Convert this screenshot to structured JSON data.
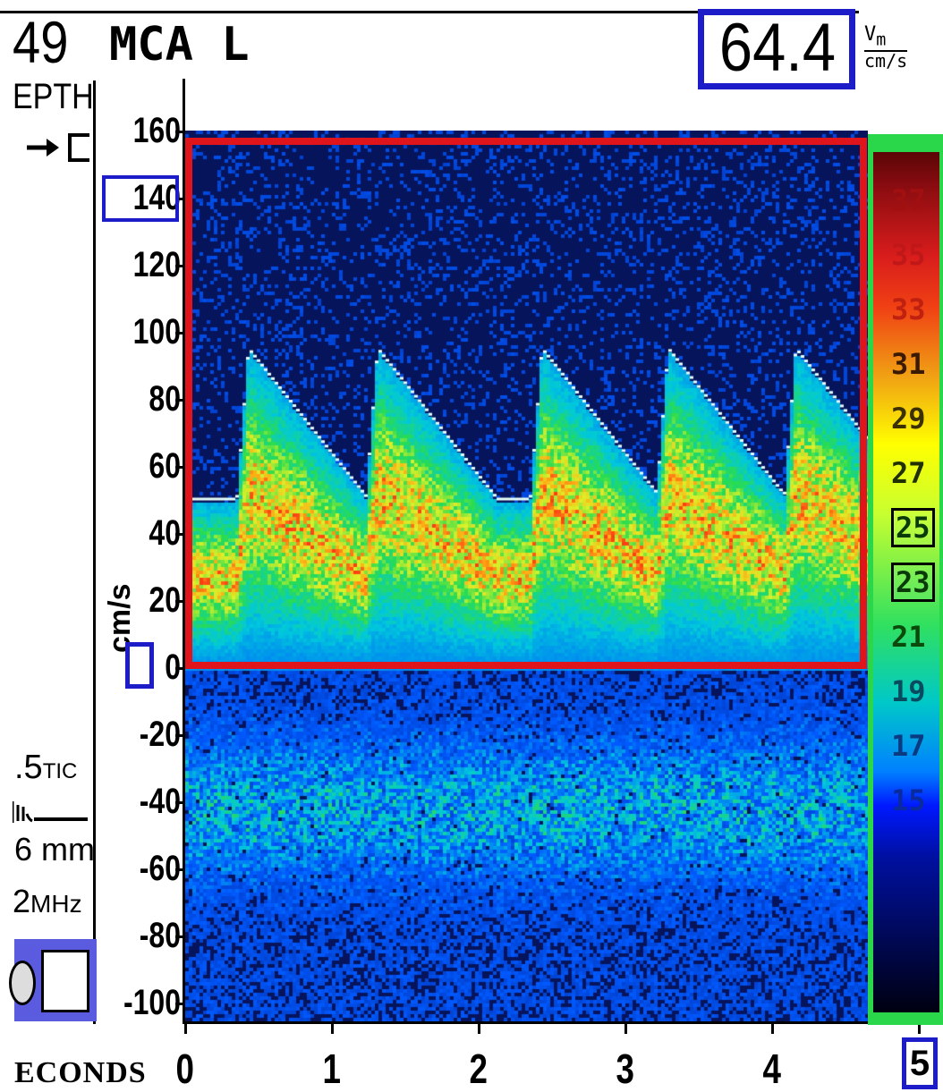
{
  "header": {
    "depth_value": "49",
    "depth_label": "EPTH",
    "vessel": "MCA L",
    "mean_velocity": "64.4",
    "mean_velocity_symbol": "V",
    "mean_velocity_subscript": "m",
    "mean_velocity_units": "cm/s"
  },
  "left_panel": {
    "tic_value": ".5",
    "tic_label": "TIC",
    "sample_volume": "6 mm",
    "frequency_value": "2",
    "frequency_unit": "MHz"
  },
  "y_axis": {
    "units": "cm/s",
    "ticks": [
      "160",
      "140",
      "120",
      "100",
      "80",
      "60",
      "40",
      "20",
      "0",
      "-20",
      "-40",
      "-60",
      "-80",
      "-100"
    ],
    "highlighted_tick": "140"
  },
  "x_axis": {
    "label": "ECONDS",
    "ticks": [
      "0",
      "1",
      "2",
      "3",
      "4"
    ]
  },
  "color_bar": {
    "labels": [
      "37",
      "35",
      "33",
      "31",
      "29",
      "27",
      "25",
      "23",
      "21",
      "19",
      "17",
      "15"
    ],
    "boxed_labels": [
      "25",
      "23"
    ],
    "gain_value": "5"
  },
  "colors": {
    "roi_border": "#e0141b",
    "highlight_box": "#1c1cc8",
    "colorbar_frame": "#2ad64a",
    "background_spectrum": "#06145c"
  },
  "icons": [
    "direction-arrow-icon",
    "sample-volume-icon",
    "probe-icon"
  ]
}
